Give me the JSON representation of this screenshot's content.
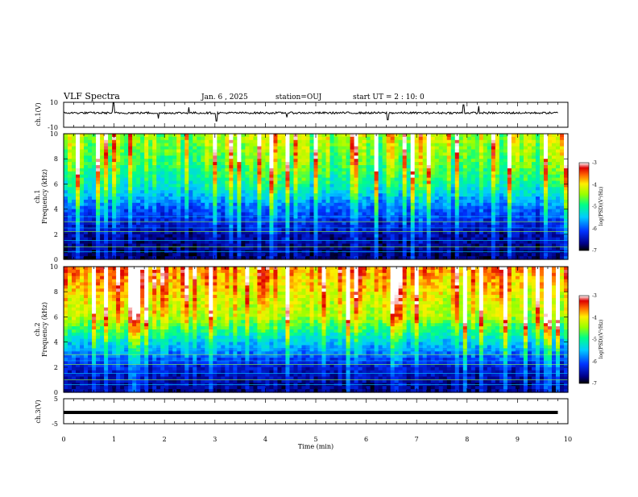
{
  "header": {
    "title": "VLF Spectra",
    "date": "Jan. 6 , 2025",
    "station": "station=OUJ",
    "start": "start UT =  2 : 10: 0"
  },
  "chart_data": [
    {
      "type": "line",
      "name": "ch1-waveform",
      "ylabel": "ch.1(V)",
      "ylim": [
        -10,
        10
      ],
      "y_ticks": [
        "10",
        "-10"
      ],
      "x": [
        0.0,
        0.96,
        0.99,
        1.02,
        1.85,
        1.88,
        2.45,
        2.48,
        3.0,
        3.03,
        3.5,
        4.4,
        4.43,
        5.6,
        6.4,
        6.43,
        7.9,
        7.93,
        8.2,
        8.23,
        9.8
      ],
      "y": [
        1.5,
        1.5,
        9.5,
        1.5,
        1.5,
        -3.0,
        1.5,
        6.0,
        1.5,
        -5.0,
        1.5,
        1.5,
        -2.0,
        1.5,
        1.5,
        -4.0,
        1.5,
        8.0,
        1.5,
        7.0,
        1.5
      ]
    },
    {
      "type": "heatmap",
      "name": "ch1-spectrogram",
      "ylabel": "ch.1",
      "ylabel2": "Frequency (kHz)",
      "y_ticks": [
        "0",
        "2",
        "4",
        "6",
        "8",
        "10"
      ],
      "ylim": [
        0,
        10
      ],
      "colorbar": {
        "label": "log(PSD)(V²/Hz)",
        "ticks": [
          "-3",
          "-4",
          "-5",
          "-6",
          "-7"
        ],
        "range": [
          -7,
          -3
        ]
      },
      "frequency_kHz": [
        10,
        8,
        6,
        4,
        2,
        0
      ],
      "log_psd_typical": [
        -4.8,
        -5.0,
        -5.4,
        -6.2,
        -6.7,
        -6.9
      ]
    },
    {
      "type": "heatmap",
      "name": "ch2-spectrogram",
      "ylabel": "ch.2",
      "ylabel2": "Frequency (kHz)",
      "y_ticks": [
        "0",
        "2",
        "4",
        "6",
        "8",
        "10"
      ],
      "ylim": [
        0,
        10
      ],
      "colorbar": {
        "label": "log(PSD)(V²/Hz)",
        "ticks": [
          "-3",
          "-4",
          "-5",
          "-6",
          "-7"
        ],
        "range": [
          -7,
          -3
        ]
      },
      "frequency_kHz": [
        10,
        8,
        6,
        4,
        2,
        0
      ],
      "log_psd_typical": [
        -4.0,
        -4.3,
        -4.6,
        -5.6,
        -6.5,
        -6.8
      ]
    },
    {
      "type": "line",
      "name": "ch3-signal",
      "ylabel": "ch.3(V)",
      "ylim": [
        -5,
        5
      ],
      "y_ticks": [
        "5",
        "-5"
      ],
      "x": [
        0.0,
        8.1,
        8.1,
        9.45,
        9.45,
        9.8
      ],
      "y": [
        -0.5,
        -0.5,
        -0.5,
        -0.5,
        -0.5,
        -0.5
      ],
      "x_ticks": [
        "0",
        "1",
        "2",
        "3",
        "4",
        "5",
        "6",
        "7",
        "8",
        "9",
        "10"
      ],
      "xlabel": "Time (min)",
      "xlim": [
        0,
        10
      ]
    }
  ]
}
